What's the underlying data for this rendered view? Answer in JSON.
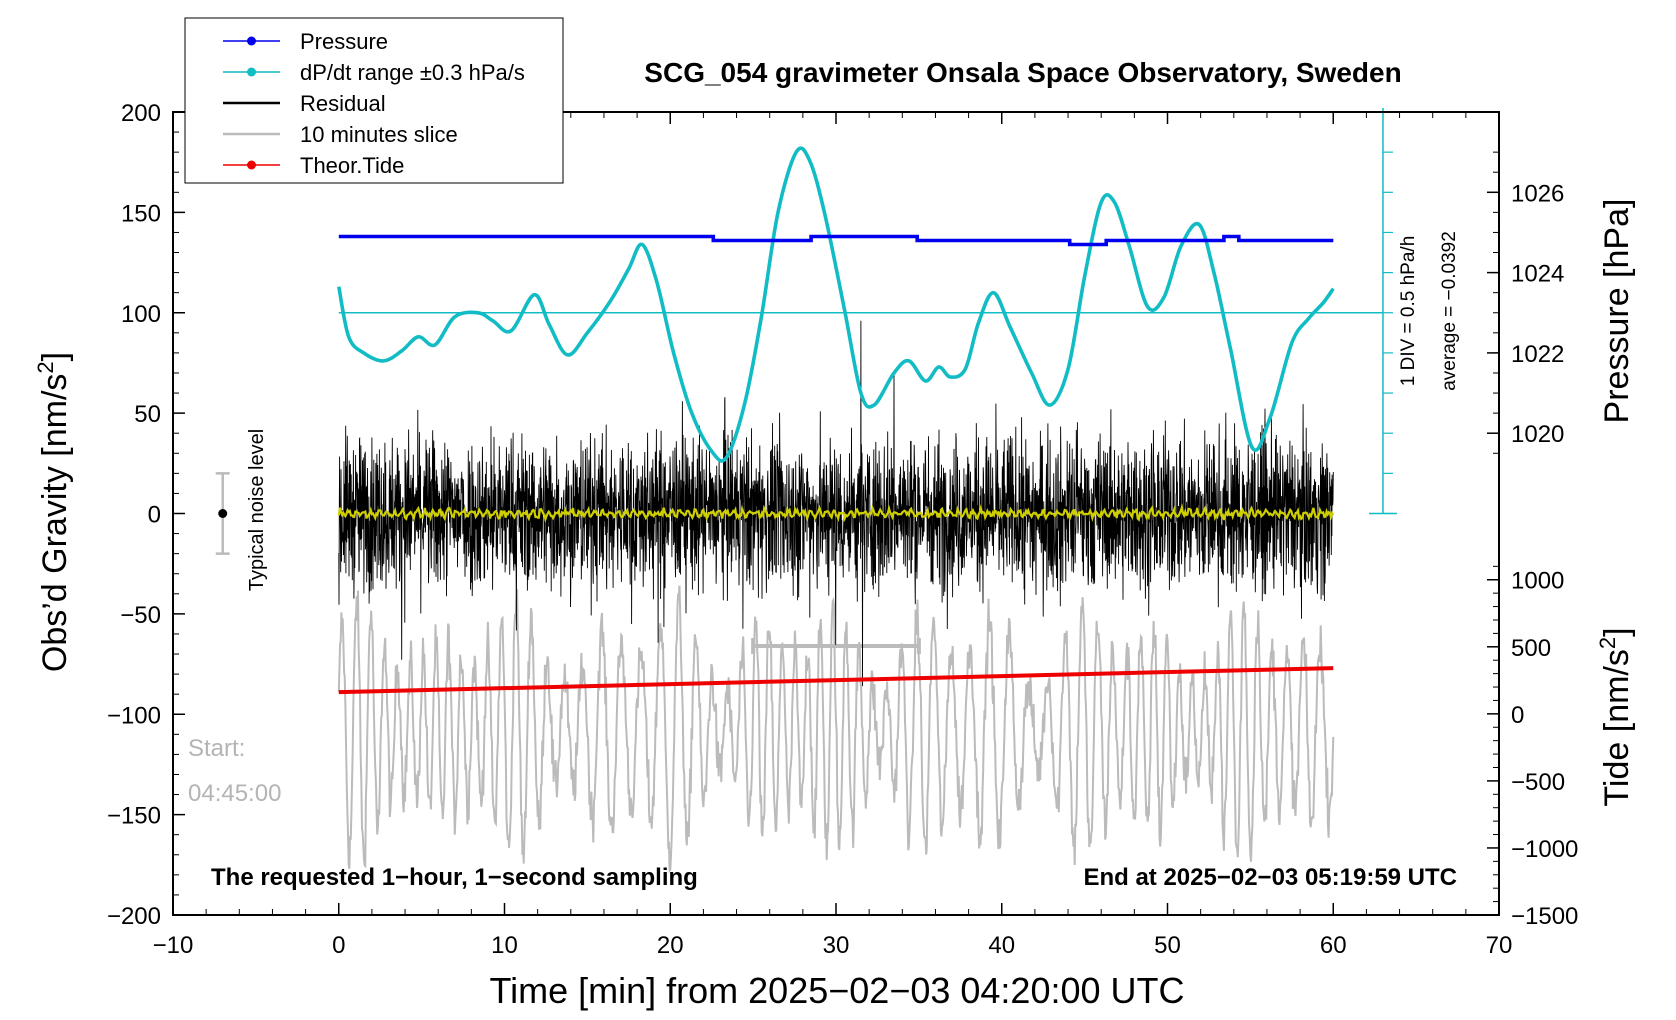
{
  "chart_data": {
    "type": "line",
    "title": "SCG_054 gravimeter Onsala Space Observatory, Sweden",
    "xlabel": "Time [min] from 2025−02−03 04:20:00 UTC",
    "xlim": [
      -10,
      70
    ],
    "x_ticks": [
      -10,
      0,
      10,
      20,
      30,
      40,
      50,
      60,
      70
    ],
    "x_tick_labels": [
      "−10",
      "0",
      "10",
      "20",
      "30",
      "40",
      "50",
      "60",
      "70"
    ],
    "left_axis": {
      "label_main": "Obs’d Gravity [nm/s",
      "label_sup": "2",
      "label_end": "]",
      "lim": [
        -200,
        200
      ],
      "ticks": [
        200,
        150,
        100,
        50,
        0,
        -50,
        -100,
        -150,
        -200
      ],
      "tick_labels": [
        "200",
        "150",
        "100",
        "50",
        "0",
        "−50",
        "−100",
        "−150",
        "−200"
      ]
    },
    "right_pressure_axis": {
      "label": "Pressure [hPa]",
      "ticks": [
        1026,
        1024,
        1022,
        1020
      ],
      "tick_labels": [
        "1026",
        "1024",
        "1022",
        "1020"
      ],
      "gravity_equiv": [
        [
          1026,
          160
        ],
        [
          1020,
          40
        ]
      ]
    },
    "right_tide_axis": {
      "label_main": "Tide [nm/s",
      "label_sup": "2",
      "label_end": "]",
      "ticks": [
        1000,
        500,
        0,
        -500,
        -1000,
        -1500
      ],
      "tick_labels": [
        "1000",
        "500",
        "0",
        "−500",
        "−1000",
        "−1500"
      ],
      "gravity_equiv": [
        [
          1000,
          -33
        ],
        [
          -1500,
          -200
        ]
      ]
    },
    "legend": {
      "position": "top-left",
      "entries": [
        {
          "label": "Pressure",
          "color": "#0000ee",
          "marker": true
        },
        {
          "label": "dP/dt range ±0.3 hPa/s",
          "color": "#11bcc4",
          "marker": true
        },
        {
          "label": "Residual",
          "color": "#000000",
          "marker": false
        },
        {
          "label": "10 minutes slice",
          "color": "#bbbbbb",
          "marker": false
        },
        {
          "label": "Theor.Tide",
          "color": "#ee0000",
          "marker": true
        }
      ]
    },
    "series": [
      {
        "name": "Pressure",
        "color": "#0000ee",
        "units": "hPa",
        "segments": [
          [
            0,
            22.6,
            1024.9
          ],
          [
            22.6,
            28.5,
            1024.8
          ],
          [
            28.5,
            34.9,
            1024.9
          ],
          [
            34.9,
            44.1,
            1024.8
          ],
          [
            44.1,
            46.3,
            1024.7
          ],
          [
            46.3,
            53.4,
            1024.8
          ],
          [
            53.4,
            54.3,
            1024.9
          ],
          [
            54.3,
            60,
            1024.8
          ]
        ]
      },
      {
        "name": "dP/dt",
        "color": "#11bcc4",
        "units": "nm/s2 equiv",
        "x": [
          0,
          0.6,
          1.5,
          2.7,
          3.8,
          4.8,
          5.8,
          7.0,
          8.4,
          9.3,
          10.4,
          11.8,
          12.7,
          13.8,
          15.0,
          16.4,
          17.5,
          18.3,
          19.2,
          20.2,
          21.3,
          22.5,
          23.4,
          24.5,
          25.5,
          26.5,
          27.6,
          28.4,
          29.3,
          30.5,
          31.5,
          32.3,
          33.5,
          34.4,
          35.4,
          36.2,
          36.9,
          37.8,
          38.6,
          39.5,
          40.5,
          41.8,
          42.9,
          44.0,
          45.0,
          46.0,
          46.8,
          47.7,
          48.8,
          49.8,
          50.8,
          51.9,
          52.8,
          53.8,
          55.1,
          56.2,
          57.5,
          58.5,
          59.4,
          60
        ],
        "y": [
          113,
          88,
          80,
          76,
          81,
          88,
          84,
          98,
          100,
          96,
          91,
          109,
          94,
          79,
          90,
          106,
          122,
          134,
          115,
          80,
          50,
          31,
          28,
          55,
          98,
          150,
          180,
          176,
          150,
          102,
          60,
          54,
          70,
          76,
          66,
          73,
          68,
          72,
          95,
          110,
          93,
          70,
          54,
          72,
          118,
          155,
          155,
          133,
          103,
          108,
          133,
          144,
          120,
          82,
          33,
          48,
          85,
          97,
          105,
          112
        ]
      },
      {
        "name": "dP/dt zero line",
        "color": "#11bcc4",
        "y_const": 100
      },
      {
        "name": "Residual",
        "color": "#000000",
        "x_range": [
          0,
          60
        ],
        "typical_amplitude": 35,
        "extrema": [
          [
            31.5,
            96
          ],
          [
            31.6,
            -86
          ],
          [
            23.3,
            58
          ],
          [
            33.5,
            70
          ]
        ]
      },
      {
        "name": "Residual (smoothed)",
        "color": "#cfcf00",
        "x_range": [
          0,
          60
        ],
        "y_center": 0,
        "amplitude": 2
      },
      {
        "name": "10 minutes slice",
        "color": "#bbbbbb",
        "x_range": [
          0,
          60
        ],
        "y_center": -108,
        "amplitude": 52,
        "highlight_x": [
          25,
          35
        ],
        "highlight_y": -66
      },
      {
        "name": "Theor.Tide",
        "color": "#ee0000",
        "x": [
          0,
          60
        ],
        "y": [
          -89,
          -77
        ]
      }
    ],
    "side_scale": {
      "label1": "1 DIV = 0.5 hPa/h",
      "label2": "average = −0.0392",
      "x": 63,
      "y_top": 202,
      "y_bottom": 0,
      "div": 20
    },
    "noise_bar": {
      "label": "Typical noise level",
      "x": -7,
      "center": 0,
      "half_range": 20
    },
    "annotations": {
      "start_label": "Start:",
      "start_time": "04:45:00",
      "bottom_left": "The requested 1−hour, 1−second sampling",
      "bottom_right": "End at 2025−02−03 05:19:59 UTC"
    }
  }
}
